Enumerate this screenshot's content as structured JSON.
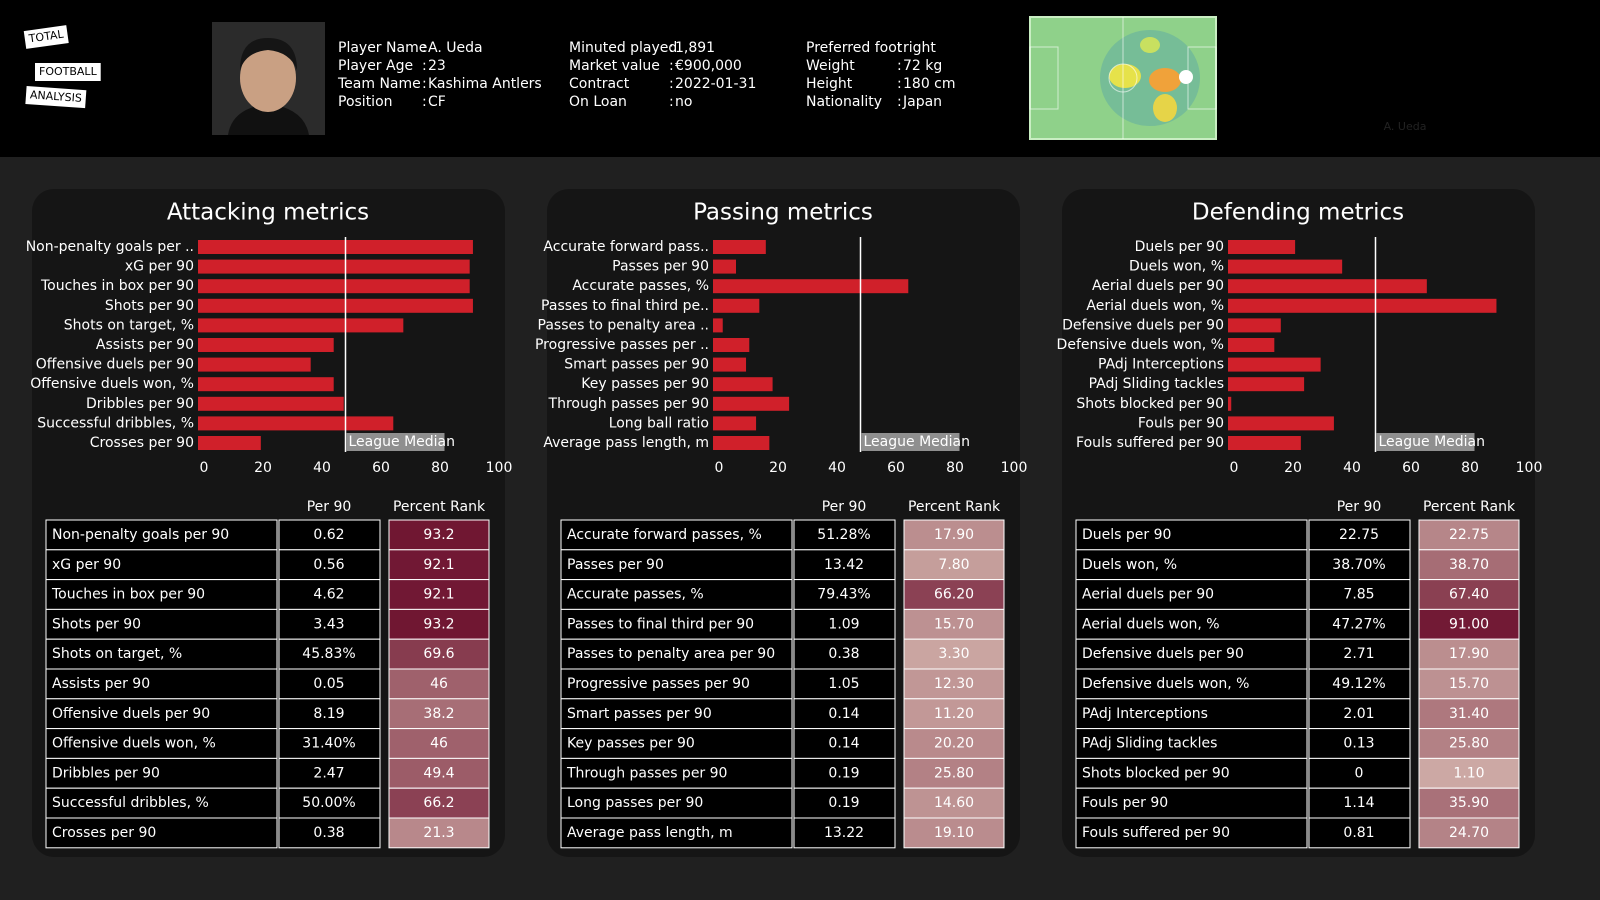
{
  "header": {
    "logo": [
      "TOTAL",
      "FOOTBALL",
      "ANALYSIS"
    ],
    "columns": [
      [
        {
          "label": "Player Name",
          "value": "A. Ueda"
        },
        {
          "label": "Player Age",
          "value": "23"
        },
        {
          "label": "Team Name",
          "value": "Kashima Antlers"
        },
        {
          "label": "Position",
          "value": "CF"
        }
      ],
      [
        {
          "label": "Minuted played",
          "value": "1,891"
        },
        {
          "label": "Market value",
          "value": "€900,000"
        },
        {
          "label": "Contract",
          "value": "2022-01-31"
        },
        {
          "label": "On Loan",
          "value": "no"
        }
      ],
      [
        {
          "label": "Preferred foot",
          "value": "right"
        },
        {
          "label": "Weight",
          "value": "72 kg"
        },
        {
          "label": "Height",
          "value": "180 cm"
        },
        {
          "label": "Nationality",
          "value": "Japan"
        }
      ]
    ],
    "heatmap_caption": "A. Ueda"
  },
  "chart_data": [
    {
      "type": "hbar",
      "title": "Attacking metrics",
      "color": "#d0202a",
      "categories": [
        "Non-penalty goals per ..",
        "xG per 90",
        "Touches in box per 90",
        "Shots per 90",
        "Shots on target, %",
        "Assists per 90",
        "Offensive duels per 90",
        "Offensive duels won, %",
        "Dribbles per 90",
        "Successful dribbles, %",
        "Crosses per 90"
      ],
      "values": [
        93.2,
        92.1,
        92.1,
        93.2,
        69.6,
        46,
        38.2,
        46,
        49.4,
        66.2,
        21.3
      ],
      "xlim": [
        0,
        100
      ],
      "xticks": [
        0,
        20,
        40,
        60,
        80,
        100
      ],
      "median": {
        "value": 50,
        "label": "League Median"
      }
    },
    {
      "type": "hbar",
      "title": "Passing metrics",
      "color": "#d0202a",
      "categories": [
        "Accurate forward pass..",
        "Passes per 90",
        "Accurate passes, %",
        "Passes to final third pe..",
        "Passes to penalty area ..",
        "Progressive passes per ..",
        "Smart passes per 90",
        "Key passes per 90",
        "Through passes per 90",
        "Long ball ratio",
        "Average pass length, m"
      ],
      "values": [
        17.9,
        7.8,
        66.2,
        15.7,
        3.3,
        12.3,
        11.2,
        20.2,
        25.8,
        14.6,
        19.1
      ],
      "xlim": [
        0,
        100
      ],
      "xticks": [
        0,
        20,
        40,
        60,
        80,
        100
      ],
      "median": {
        "value": 50,
        "label": "League Median"
      }
    },
    {
      "type": "hbar",
      "title": "Defending metrics",
      "color": "#d0202a",
      "categories": [
        "Duels per 90",
        "Duels won, %",
        "Aerial duels per 90",
        "Aerial duels won, %",
        "Defensive duels per 90",
        "Defensive duels won, %",
        "PAdj Interceptions",
        "PAdj Sliding tackles",
        "Shots blocked per 90",
        "Fouls per 90",
        "Fouls suffered per 90"
      ],
      "values": [
        22.75,
        38.7,
        67.4,
        91,
        17.9,
        15.7,
        31.4,
        25.8,
        1.1,
        35.9,
        24.7
      ],
      "xlim": [
        0,
        100
      ],
      "xticks": [
        0,
        20,
        40,
        60,
        80,
        100
      ],
      "median": {
        "value": 50,
        "label": "League Median"
      }
    }
  ],
  "tables": [
    {
      "columns": [
        "Per 90",
        "Percent Rank"
      ],
      "rows": [
        [
          "Non-penalty goals per 90",
          "0.62",
          "93.2"
        ],
        [
          "xG per 90",
          "0.56",
          "92.1"
        ],
        [
          "Touches in box per 90",
          "4.62",
          "92.1"
        ],
        [
          "Shots per 90",
          "3.43",
          "93.2"
        ],
        [
          "Shots on target, %",
          "45.83%",
          "69.6"
        ],
        [
          "Assists per 90",
          "0.05",
          "46"
        ],
        [
          "Offensive duels per 90",
          "8.19",
          "38.2"
        ],
        [
          "Offensive duels won, %",
          "31.40%",
          "46"
        ],
        [
          "Dribbles per 90",
          "2.47",
          "49.4"
        ],
        [
          "Successful dribbles, %",
          "50.00%",
          "66.2"
        ],
        [
          "Crosses per 90",
          "0.38",
          "21.3"
        ]
      ]
    },
    {
      "columns": [
        "Per 90",
        "Percent Rank"
      ],
      "rows": [
        [
          "Accurate forward passes, %",
          "51.28%",
          "17.90"
        ],
        [
          "Passes per 90",
          "13.42",
          "7.80"
        ],
        [
          "Accurate passes, %",
          "79.43%",
          "66.20"
        ],
        [
          "Passes to final third per 90",
          "1.09",
          "15.70"
        ],
        [
          "Passes to penalty area per 90",
          "0.38",
          "3.30"
        ],
        [
          "Progressive passes per 90",
          "1.05",
          "12.30"
        ],
        [
          "Smart passes per 90",
          "0.14",
          "11.20"
        ],
        [
          "Key passes per 90",
          "0.14",
          "20.20"
        ],
        [
          "Through passes per 90",
          "0.19",
          "25.80"
        ],
        [
          "Long passes per 90",
          "0.19",
          "14.60"
        ],
        [
          "Average pass length, m",
          "13.22",
          "19.10"
        ]
      ]
    },
    {
      "columns": [
        "Per 90",
        "Percent Rank"
      ],
      "rows": [
        [
          "Duels per 90",
          "22.75",
          "22.75"
        ],
        [
          "Duels won, %",
          "38.70%",
          "38.70"
        ],
        [
          "Aerial duels per 90",
          "7.85",
          "67.40"
        ],
        [
          "Aerial duels won, %",
          "47.27%",
          "91.00"
        ],
        [
          "Defensive duels per 90",
          "2.71",
          "17.90"
        ],
        [
          "Defensive duels won, %",
          "49.12%",
          "15.70"
        ],
        [
          "PAdj Interceptions",
          "2.01",
          "31.40"
        ],
        [
          "PAdj Sliding tackles",
          "0.13",
          "25.80"
        ],
        [
          "Shots blocked per 90",
          "0",
          "1.10"
        ],
        [
          "Fouls per 90",
          "1.14",
          "35.90"
        ],
        [
          "Fouls suffered per 90",
          "0.81",
          "24.70"
        ]
      ]
    }
  ]
}
